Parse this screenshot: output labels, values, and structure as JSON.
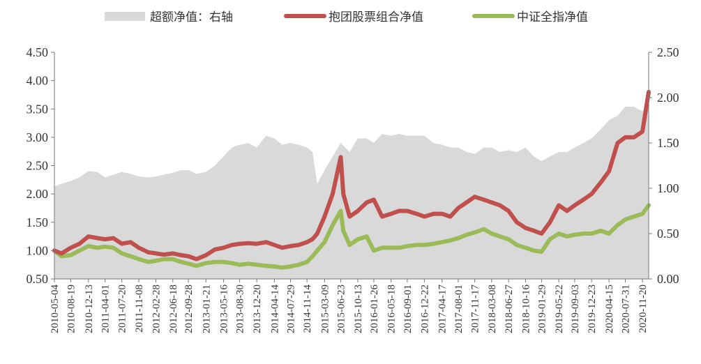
{
  "chart_data": {
    "type": "line+area",
    "legend": [
      {
        "label": "超额净值：右轴",
        "color": "#d9d9d9",
        "kind": "area"
      },
      {
        "label": "抱团股票组合净值",
        "color": "#c0504d",
        "kind": "line"
      },
      {
        "label": "中证全指净值",
        "color": "#9bbb59",
        "kind": "line"
      }
    ],
    "legend_position": "top",
    "y_left": {
      "min": 0.5,
      "max": 4.5,
      "ticks": [
        "0.50",
        "1.00",
        "1.50",
        "2.00",
        "2.50",
        "3.00",
        "3.50",
        "4.00",
        "4.50"
      ]
    },
    "y_right": {
      "min": 0.0,
      "max": 2.5,
      "ticks": [
        "0.00",
        "0.50",
        "1.00",
        "1.50",
        "2.00",
        "2.50"
      ]
    },
    "x_ticks": [
      "2010-05-04",
      "2010-08-19",
      "2010-12-13",
      "2011-04-01",
      "2011-07-20",
      "2011-11-08",
      "2012-02-28",
      "2012-06-18",
      "2012-09-28",
      "2013-01-21",
      "2013-05-16",
      "2013-08-30",
      "2013-12-20",
      "2014-04-14",
      "2014-07-29",
      "2014-11-14",
      "2015-03-09",
      "2015-06-23",
      "2015-10-13",
      "2016-01-26",
      "2016-05-18",
      "2016-09-01",
      "2016-12-22",
      "2017-04-17",
      "2017-08-01",
      "2017-11-17",
      "2018-03-08",
      "2018-06-27",
      "2018-10-16",
      "2019-01-29",
      "2019-05-22",
      "2019-09-03",
      "2019-12-23",
      "2020-04-15",
      "2020-07-31",
      "2020-11-20"
    ],
    "grid": false,
    "series": [
      {
        "name": "超额净值：右轴",
        "axis": "right",
        "x": [
          "2010-05-04",
          "2010-06-20",
          "2010-08-19",
          "2010-10-15",
          "2010-12-13",
          "2011-02-10",
          "2011-04-01",
          "2011-05-25",
          "2011-07-20",
          "2011-09-15",
          "2011-11-08",
          "2012-01-10",
          "2012-02-28",
          "2012-04-20",
          "2012-06-18",
          "2012-08-10",
          "2012-09-28",
          "2012-11-20",
          "2013-01-21",
          "2013-03-20",
          "2013-05-16",
          "2013-07-10",
          "2013-08-30",
          "2013-10-25",
          "2013-12-20",
          "2014-02-20",
          "2014-04-14",
          "2014-06-05",
          "2014-07-29",
          "2014-09-20",
          "2014-11-14",
          "2014-12-20",
          "2015-01-20",
          "2015-03-09",
          "2015-05-01",
          "2015-06-23",
          "2015-08-20",
          "2015-10-13",
          "2015-12-10",
          "2016-01-26",
          "2016-03-20",
          "2016-05-18",
          "2016-07-10",
          "2016-09-01",
          "2016-11-01",
          "2016-12-22",
          "2017-02-20",
          "2017-04-17",
          "2017-06-10",
          "2017-08-01",
          "2017-09-25",
          "2017-11-17",
          "2018-01-15",
          "2018-03-08",
          "2018-05-01",
          "2018-06-27",
          "2018-08-20",
          "2018-10-16",
          "2018-12-10",
          "2019-01-29",
          "2019-03-25",
          "2019-05-22",
          "2019-07-15",
          "2019-09-03",
          "2019-10-30",
          "2019-12-23",
          "2020-02-20",
          "2020-04-15",
          "2020-06-10",
          "2020-07-31",
          "2020-09-25",
          "2020-11-20",
          "2020-12-31"
        ],
        "values": [
          1.02,
          1.05,
          1.08,
          1.12,
          1.19,
          1.18,
          1.12,
          1.15,
          1.18,
          1.16,
          1.13,
          1.12,
          1.13,
          1.15,
          1.17,
          1.2,
          1.2,
          1.16,
          1.18,
          1.25,
          1.35,
          1.45,
          1.48,
          1.5,
          1.45,
          1.58,
          1.55,
          1.48,
          1.5,
          1.48,
          1.45,
          1.4,
          1.05,
          1.2,
          1.35,
          1.5,
          1.4,
          1.55,
          1.55,
          1.5,
          1.6,
          1.58,
          1.6,
          1.58,
          1.58,
          1.58,
          1.5,
          1.48,
          1.45,
          1.45,
          1.4,
          1.38,
          1.45,
          1.45,
          1.4,
          1.42,
          1.4,
          1.45,
          1.35,
          1.3,
          1.35,
          1.4,
          1.4,
          1.45,
          1.5,
          1.55,
          1.65,
          1.75,
          1.8,
          1.9,
          1.9,
          1.85,
          1.95
        ]
      },
      {
        "name": "抱团股票组合净值",
        "axis": "left",
        "x": [
          "2010-05-04",
          "2010-06-20",
          "2010-08-19",
          "2010-10-15",
          "2010-12-13",
          "2011-02-10",
          "2011-04-01",
          "2011-05-25",
          "2011-07-20",
          "2011-09-15",
          "2011-11-08",
          "2012-01-10",
          "2012-02-28",
          "2012-04-20",
          "2012-06-18",
          "2012-08-10",
          "2012-09-28",
          "2012-11-20",
          "2013-01-21",
          "2013-03-20",
          "2013-05-16",
          "2013-07-10",
          "2013-08-30",
          "2013-10-25",
          "2013-12-20",
          "2014-02-20",
          "2014-04-14",
          "2014-06-05",
          "2014-07-29",
          "2014-09-20",
          "2014-11-14",
          "2014-12-20",
          "2015-01-20",
          "2015-03-09",
          "2015-05-01",
          "2015-06-23",
          "2015-07-10",
          "2015-08-20",
          "2015-10-13",
          "2015-12-10",
          "2016-01-26",
          "2016-03-20",
          "2016-05-18",
          "2016-07-10",
          "2016-09-01",
          "2016-11-01",
          "2016-12-22",
          "2017-02-20",
          "2017-04-17",
          "2017-06-10",
          "2017-08-01",
          "2017-09-25",
          "2017-11-17",
          "2018-01-15",
          "2018-03-08",
          "2018-05-01",
          "2018-06-27",
          "2018-08-20",
          "2018-10-16",
          "2018-12-10",
          "2019-01-29",
          "2019-03-25",
          "2019-05-22",
          "2019-07-15",
          "2019-09-03",
          "2019-10-30",
          "2019-12-23",
          "2020-02-20",
          "2020-04-15",
          "2020-06-10",
          "2020-07-31",
          "2020-09-25",
          "2020-11-20",
          "2020-12-31"
        ],
        "values": [
          1.0,
          0.95,
          1.05,
          1.12,
          1.25,
          1.22,
          1.2,
          1.22,
          1.12,
          1.15,
          1.05,
          0.97,
          0.95,
          0.93,
          0.95,
          0.92,
          0.9,
          0.85,
          0.92,
          1.02,
          1.05,
          1.1,
          1.12,
          1.13,
          1.12,
          1.15,
          1.1,
          1.05,
          1.08,
          1.1,
          1.15,
          1.2,
          1.3,
          1.6,
          2.0,
          2.65,
          2.0,
          1.6,
          1.7,
          1.85,
          1.9,
          1.6,
          1.65,
          1.7,
          1.7,
          1.65,
          1.6,
          1.65,
          1.65,
          1.6,
          1.75,
          1.85,
          1.95,
          1.9,
          1.85,
          1.8,
          1.7,
          1.5,
          1.4,
          1.35,
          1.3,
          1.5,
          1.8,
          1.7,
          1.8,
          1.9,
          2.0,
          2.2,
          2.4,
          2.9,
          3.0,
          3.0,
          3.1,
          3.8
        ]
      },
      {
        "name": "中证全指净值",
        "axis": "left",
        "x": [
          "2010-05-04",
          "2010-06-20",
          "2010-08-19",
          "2010-10-15",
          "2010-12-13",
          "2011-02-10",
          "2011-04-01",
          "2011-05-25",
          "2011-07-20",
          "2011-09-15",
          "2011-11-08",
          "2012-01-10",
          "2012-02-28",
          "2012-04-20",
          "2012-06-18",
          "2012-08-10",
          "2012-09-28",
          "2012-11-20",
          "2013-01-21",
          "2013-03-20",
          "2013-05-16",
          "2013-07-10",
          "2013-08-30",
          "2013-10-25",
          "2013-12-20",
          "2014-02-20",
          "2014-04-14",
          "2014-06-05",
          "2014-07-29",
          "2014-09-20",
          "2014-11-14",
          "2014-12-20",
          "2015-01-20",
          "2015-03-09",
          "2015-05-01",
          "2015-06-23",
          "2015-07-10",
          "2015-08-20",
          "2015-10-13",
          "2015-12-10",
          "2016-01-26",
          "2016-03-20",
          "2016-05-18",
          "2016-07-10",
          "2016-09-01",
          "2016-11-01",
          "2016-12-22",
          "2017-02-20",
          "2017-04-17",
          "2017-06-10",
          "2017-08-01",
          "2017-09-25",
          "2017-11-17",
          "2018-01-15",
          "2018-03-08",
          "2018-05-01",
          "2018-06-27",
          "2018-08-20",
          "2018-10-16",
          "2018-12-10",
          "2019-01-29",
          "2019-03-25",
          "2019-05-22",
          "2019-07-15",
          "2019-09-03",
          "2019-10-30",
          "2019-12-23",
          "2020-02-20",
          "2020-04-15",
          "2020-06-10",
          "2020-07-31",
          "2020-09-25",
          "2020-11-20",
          "2020-12-31"
        ],
        "values": [
          1.0,
          0.9,
          0.92,
          1.0,
          1.08,
          1.05,
          1.07,
          1.05,
          0.95,
          0.9,
          0.85,
          0.8,
          0.82,
          0.85,
          0.85,
          0.8,
          0.77,
          0.73,
          0.78,
          0.8,
          0.8,
          0.78,
          0.75,
          0.77,
          0.75,
          0.73,
          0.72,
          0.7,
          0.72,
          0.75,
          0.8,
          0.9,
          1.0,
          1.15,
          1.45,
          1.7,
          1.35,
          1.1,
          1.2,
          1.25,
          1.0,
          1.05,
          1.05,
          1.05,
          1.08,
          1.1,
          1.1,
          1.12,
          1.15,
          1.18,
          1.22,
          1.28,
          1.32,
          1.38,
          1.3,
          1.25,
          1.2,
          1.1,
          1.05,
          1.0,
          0.98,
          1.2,
          1.3,
          1.25,
          1.28,
          1.3,
          1.3,
          1.35,
          1.3,
          1.45,
          1.55,
          1.6,
          1.65,
          1.8
        ]
      }
    ]
  }
}
